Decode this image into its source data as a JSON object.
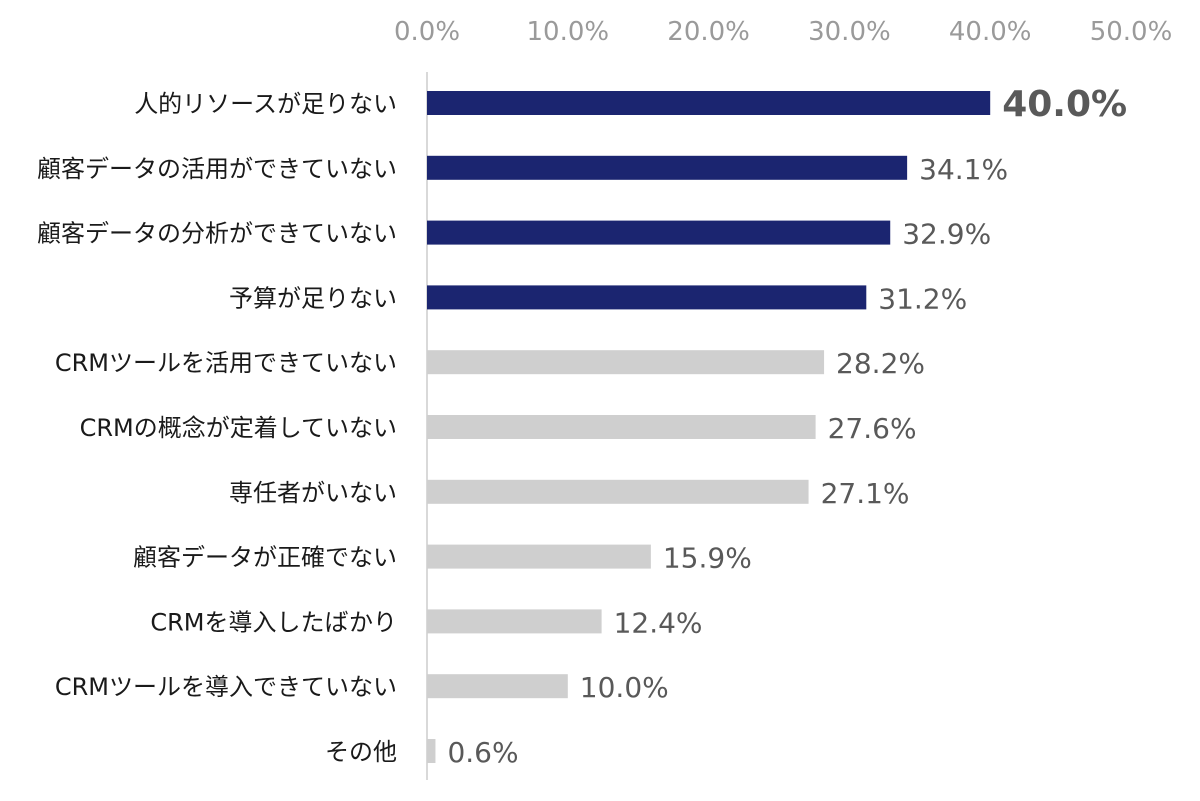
{
  "chart_data": {
    "type": "bar",
    "orientation": "horizontal",
    "title": "",
    "xlabel": "",
    "ylabel": "",
    "xlim": [
      0,
      50
    ],
    "ticks": [
      0,
      10,
      20,
      30,
      40,
      50
    ],
    "tick_labels": [
      "0.0%",
      "10.0%",
      "20.0%",
      "30.0%",
      "40.0%",
      "50.0%"
    ],
    "categories": [
      "人的リソースが足りない",
      "顧客データの活用ができていない",
      "顧客データの分析ができていない",
      "予算が足りない",
      "CRMツールを活用できていない",
      "CRMの概念が定着していない",
      "専任者がいない",
      "顧客データが正確でない",
      "CRMを導入したばかり",
      "CRMツールを導入できていない",
      "その他"
    ],
    "values": [
      40.0,
      34.1,
      32.9,
      31.2,
      28.2,
      27.6,
      27.1,
      15.9,
      12.4,
      10.0,
      0.6
    ],
    "value_labels": [
      "40.0%",
      "34.1%",
      "32.9%",
      "31.2%",
      "28.2%",
      "27.6%",
      "27.1%",
      "15.9%",
      "12.4%",
      "10.0%",
      "0.6%"
    ],
    "highlight_count": 4,
    "highlight_label_index": 0,
    "colors": {
      "highlight_bar": "#1b2570",
      "normal_bar": "#cfcfcf",
      "highlight_label": "#f0a020",
      "value_label": "#595959",
      "tick_label": "#9a9a9a",
      "axis_line": "#d9d9d9",
      "category_label": "#1a1a1a"
    },
    "grid": false,
    "legend": "none"
  }
}
